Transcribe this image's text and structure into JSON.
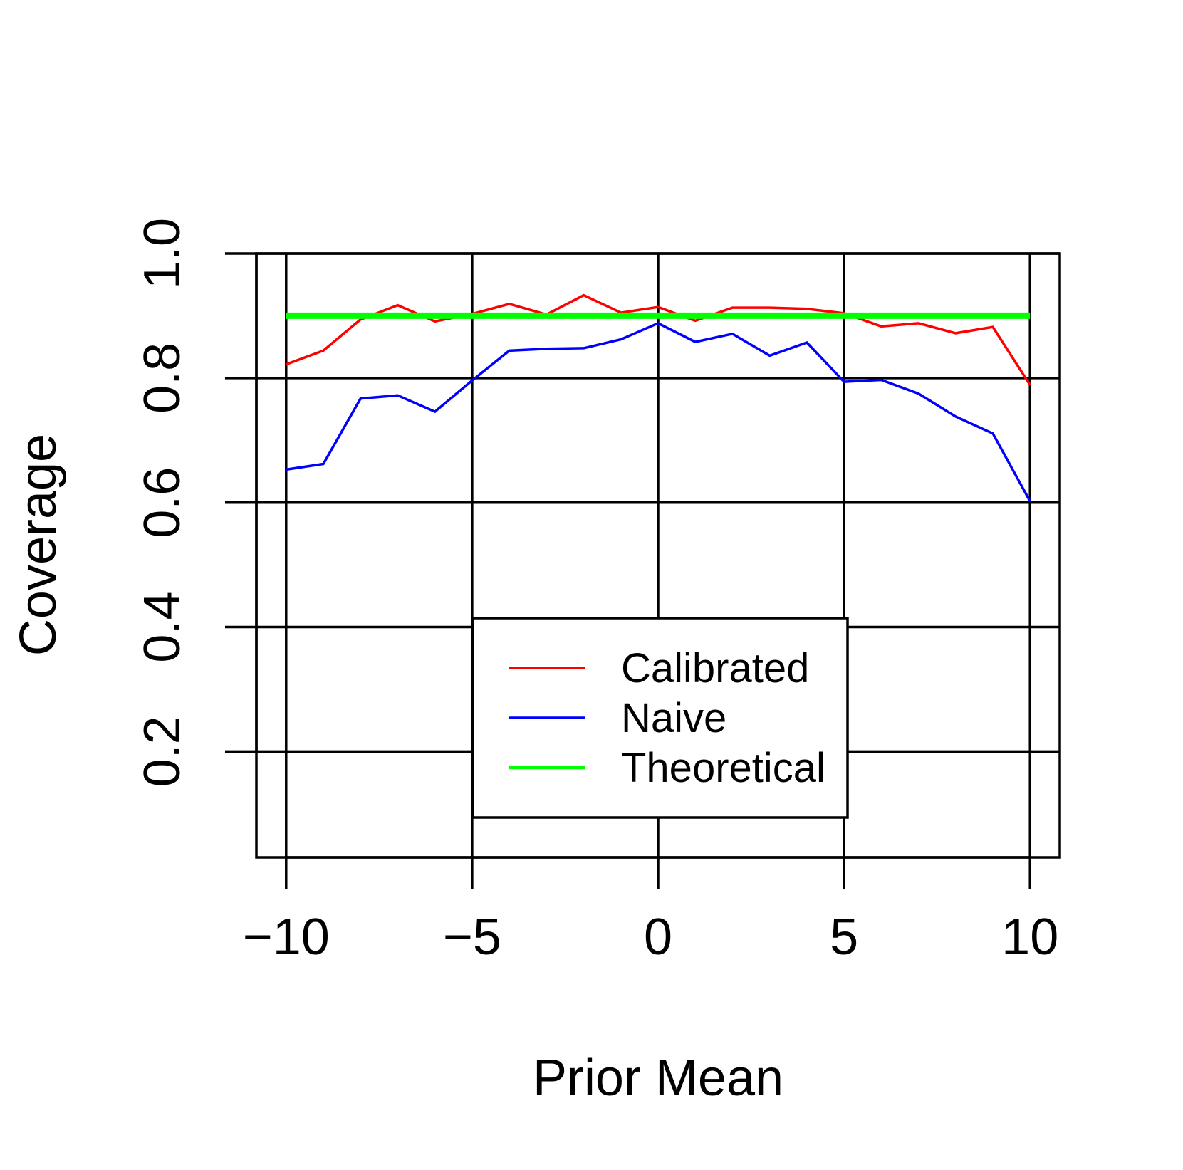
{
  "chart_data": {
    "type": "line",
    "title": "",
    "xlabel": "Prior Mean",
    "ylabel": "Coverage",
    "xlim": [
      -10.8,
      10.8
    ],
    "ylim": [
      0.03,
      1.0
    ],
    "x_ticks": [
      -10,
      -5,
      0,
      5,
      10
    ],
    "x_tick_labels": [
      "−10",
      "−5",
      "0",
      "5",
      "10"
    ],
    "y_ticks": [
      0.2,
      0.4,
      0.6,
      0.8,
      1.0
    ],
    "y_tick_labels": [
      "0.2",
      "0.4",
      "0.6",
      "0.8",
      "1.0"
    ],
    "grid": true,
    "legend_position": "bottom-center",
    "x": [
      -10,
      -9,
      -8,
      -7,
      -6,
      -5,
      -4,
      -3,
      -2,
      -1,
      0,
      1,
      2,
      3,
      4,
      5,
      6,
      7,
      8,
      9,
      10
    ],
    "series": [
      {
        "name": "Calibrated",
        "color": "#ff0000",
        "values": [
          0.822,
          0.844,
          0.894,
          0.917,
          0.891,
          0.903,
          0.919,
          0.902,
          0.933,
          0.905,
          0.914,
          0.892,
          0.913,
          0.913,
          0.911,
          0.904,
          0.883,
          0.888,
          0.872,
          0.882,
          0.789
        ]
      },
      {
        "name": "Naive",
        "color": "#0000ff",
        "values": [
          0.653,
          0.662,
          0.767,
          0.772,
          0.746,
          0.796,
          0.844,
          0.847,
          0.848,
          0.862,
          0.888,
          0.858,
          0.871,
          0.836,
          0.857,
          0.794,
          0.797,
          0.775,
          0.738,
          0.711,
          0.602
        ]
      },
      {
        "name": "Theoretical",
        "color": "#00ff00",
        "values": [
          0.9,
          0.9,
          0.9,
          0.9,
          0.9,
          0.9,
          0.9,
          0.9,
          0.9,
          0.9,
          0.9,
          0.9,
          0.9,
          0.9,
          0.9,
          0.9,
          0.9,
          0.9,
          0.9,
          0.9,
          0.9
        ]
      }
    ]
  }
}
